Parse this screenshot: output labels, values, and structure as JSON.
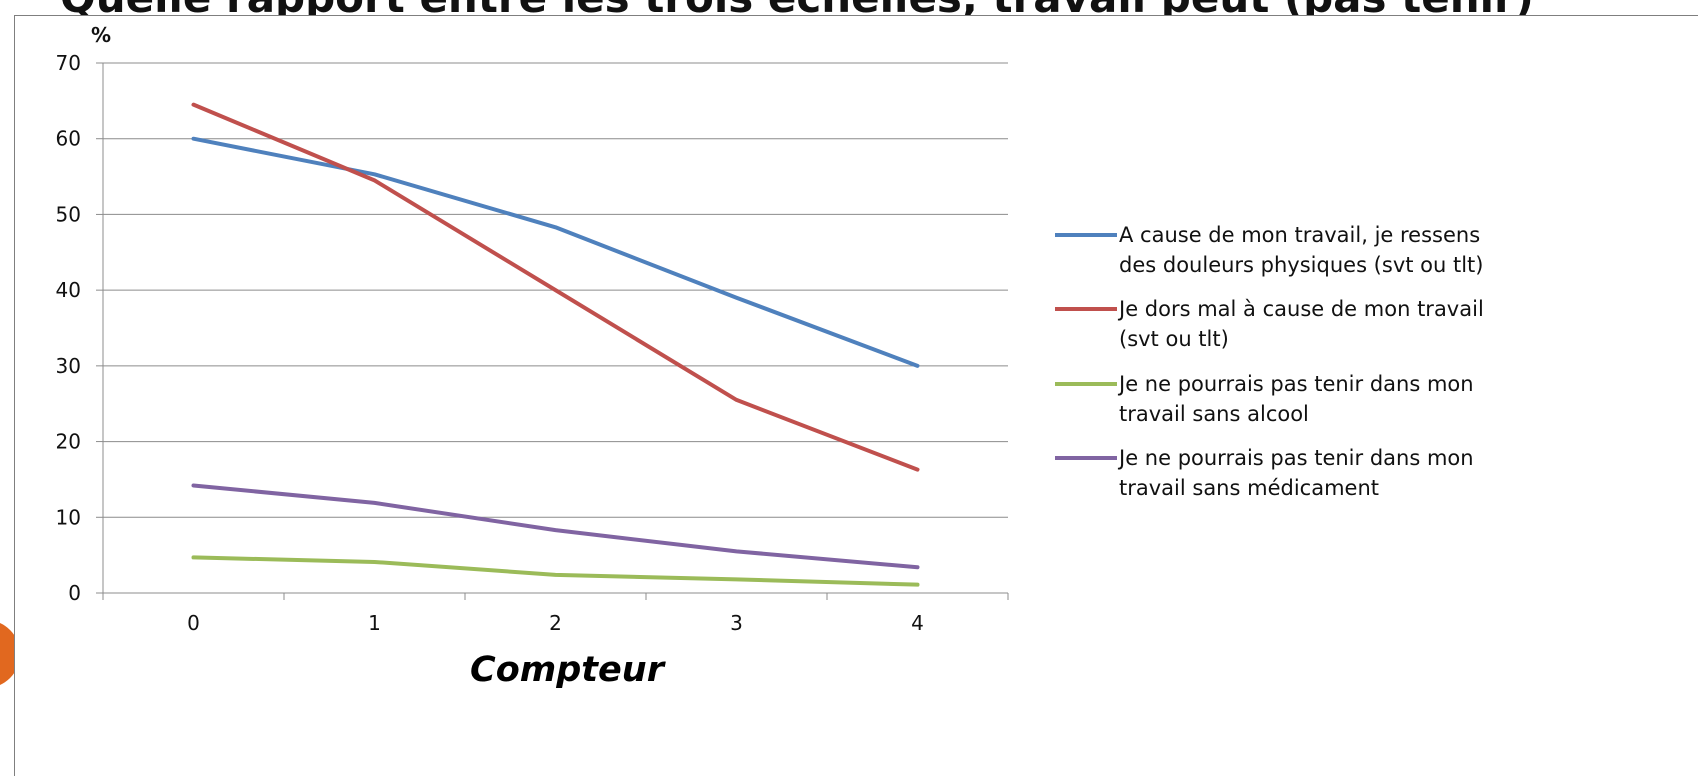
{
  "title": "Quelle rapport entre les trois échelles, travail peut (pas tenir)",
  "chart_data": {
    "type": "line",
    "ylabel": "%",
    "xlabel": "Compteur",
    "x": [
      0,
      1,
      2,
      3,
      4
    ],
    "ylim": [
      0,
      70
    ],
    "yticks": [
      0,
      10,
      20,
      30,
      40,
      50,
      60,
      70
    ],
    "grid": true,
    "legend_position": "right",
    "series": [
      {
        "name": "A cause de mon travail, je ressens des douleurs physiques (svt ou tlt)",
        "name_lines": [
          "A cause de mon travail, je ressens",
          "des douleurs physiques (svt ou tlt)"
        ],
        "color": "#4f81bd",
        "values": [
          60,
          55.3,
          48.3,
          39,
          30
        ]
      },
      {
        "name": "Je dors mal à cause de mon travail (svt ou tlt)",
        "name_lines": [
          "Je dors mal à cause de mon travail",
          "(svt ou tlt)"
        ],
        "color": "#c0504d",
        "values": [
          64.5,
          54.5,
          40,
          25.5,
          16.3
        ]
      },
      {
        "name": "Je ne pourrais pas tenir dans mon travail sans alcool",
        "name_lines": [
          "Je ne pourrais pas tenir dans mon",
          "travail sans alcool"
        ],
        "color": "#9bbb59",
        "values": [
          4.7,
          4.1,
          2.4,
          1.8,
          1.1
        ]
      },
      {
        "name": "Je ne pourrais pas tenir dans mon travail sans médicament",
        "name_lines": [
          "Je ne pourrais pas tenir dans mon",
          "travail sans médicament"
        ],
        "color": "#8064a2",
        "values": [
          14.2,
          11.9,
          8.3,
          5.5,
          3.4
        ]
      }
    ]
  }
}
